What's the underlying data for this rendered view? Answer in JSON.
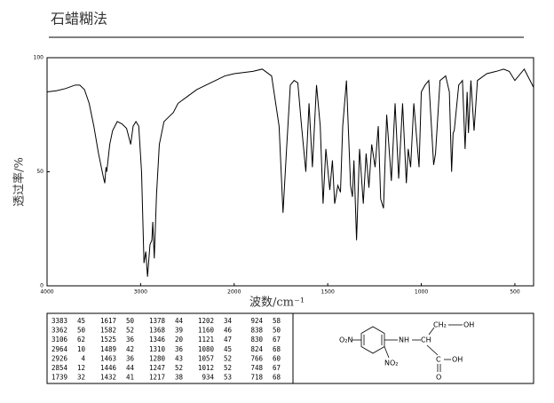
{
  "chart_data": {
    "type": "line",
    "title": "石蜡糊法",
    "x_label": "波数/cm⁻¹",
    "y_label": "透过率/%",
    "color": "#000000",
    "xlim": [
      4000,
      400
    ],
    "xticks": [
      4000,
      3000,
      2000,
      1500,
      1000,
      500
    ],
    "ylim": [
      0,
      100
    ],
    "yticks": [
      0,
      50,
      100
    ],
    "x": [
      4000,
      3900,
      3800,
      3700,
      3650,
      3600,
      3550,
      3500,
      3450,
      3400,
      3383,
      3370,
      3362,
      3330,
      3300,
      3250,
      3200,
      3150,
      3106,
      3080,
      3050,
      3020,
      2990,
      2964,
      2945,
      2926,
      2900,
      2880,
      2870,
      2854,
      2830,
      2800,
      2750,
      2700,
      2650,
      2600,
      2500,
      2400,
      2300,
      2200,
      2100,
      2000,
      1900,
      1850,
      1800,
      1760,
      1739,
      1720,
      1700,
      1680,
      1660,
      1640,
      1617,
      1600,
      1582,
      1560,
      1540,
      1525,
      1510,
      1489,
      1475,
      1463,
      1446,
      1432,
      1420,
      1400,
      1378,
      1368,
      1360,
      1346,
      1330,
      1310,
      1295,
      1280,
      1265,
      1247,
      1230,
      1217,
      1202,
      1185,
      1160,
      1140,
      1121,
      1100,
      1080,
      1070,
      1057,
      1040,
      1012,
      1000,
      980,
      960,
      934,
      924,
      900,
      870,
      850,
      838,
      830,
      824,
      800,
      780,
      766,
      755,
      748,
      735,
      718,
      700,
      650,
      600,
      560,
      530,
      500,
      450,
      400
    ],
    "values": [
      85,
      85.5,
      86.5,
      88,
      88,
      86,
      80,
      70,
      58,
      48,
      45,
      52,
      50,
      62,
      68,
      72,
      71,
      69,
      62,
      70,
      72,
      70,
      50,
      10,
      15,
      4,
      18,
      20,
      28,
      12,
      40,
      62,
      72,
      74,
      76,
      80,
      83,
      86,
      88,
      90,
      92,
      93,
      94,
      95,
      92,
      70,
      32,
      60,
      88,
      90,
      89,
      70,
      50,
      80,
      52,
      88,
      70,
      36,
      60,
      42,
      55,
      36,
      44,
      41,
      70,
      90,
      44,
      39,
      55,
      20,
      60,
      36,
      58,
      43,
      62,
      52,
      70,
      38,
      34,
      75,
      46,
      80,
      47,
      80,
      45,
      60,
      52,
      80,
      52,
      85,
      88,
      90,
      53,
      58,
      90,
      92,
      85,
      50,
      67,
      68,
      88,
      90,
      60,
      85,
      67,
      90,
      68,
      90,
      93,
      94,
      95,
      94,
      90,
      95,
      87
    ]
  },
  "table": {
    "rows": [
      [
        3383,
        45,
        1617,
        50,
        1378,
        44,
        1202,
        34,
        924,
        58
      ],
      [
        3362,
        50,
        1582,
        52,
        1368,
        39,
        1160,
        46,
        838,
        50
      ],
      [
        3106,
        62,
        1525,
        36,
        1346,
        20,
        1121,
        47,
        830,
        67
      ],
      [
        2964,
        10,
        1489,
        42,
        1310,
        36,
        1080,
        45,
        824,
        68
      ],
      [
        2926,
        4,
        1463,
        36,
        1280,
        43,
        1057,
        52,
        766,
        60
      ],
      [
        2854,
        12,
        1446,
        44,
        1247,
        52,
        1012,
        52,
        748,
        67
      ],
      [
        1739,
        32,
        1432,
        41,
        1217,
        38,
        934,
        53,
        718,
        68
      ]
    ]
  },
  "structure": {
    "labels": [
      "O₂N",
      "NH",
      "CH",
      "CH₂",
      "OH",
      "NO₂",
      "C",
      "OH",
      "O"
    ]
  }
}
